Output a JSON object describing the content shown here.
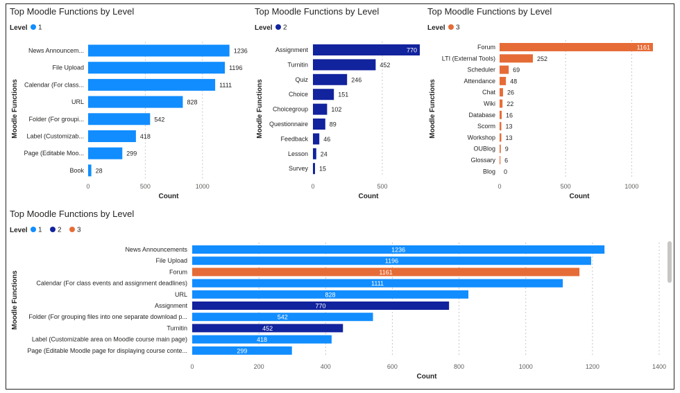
{
  "chart_data": [
    {
      "type": "bar",
      "orientation": "horizontal",
      "title": "Top Moodle Functions by Level",
      "legend_title": "Level",
      "legend": [
        {
          "label": "1",
          "color": "#118DFF"
        }
      ],
      "categories": [
        "News Announcem...",
        "File Upload",
        "Calendar (For class...",
        "URL",
        "Folder (For groupi...",
        "Label (Customizab...",
        "Page (Editable Moo...",
        "Book"
      ],
      "values": [
        1236,
        1196,
        1111,
        828,
        542,
        418,
        299,
        28
      ],
      "bar_colors": [
        "#118DFF",
        "#118DFF",
        "#118DFF",
        "#118DFF",
        "#118DFF",
        "#118DFF",
        "#118DFF",
        "#118DFF"
      ],
      "label_inside": [
        false,
        false,
        false,
        false,
        false,
        false,
        false,
        false
      ],
      "xlabel": "Count",
      "ylabel": "Moodle Functions",
      "xlim": [
        0,
        1250
      ],
      "xticks": [
        0,
        500,
        1000
      ]
    },
    {
      "type": "bar",
      "orientation": "horizontal",
      "title": "Top Moodle Functions by Level",
      "legend_title": "Level",
      "legend": [
        {
          "label": "2",
          "color": "#12239E"
        }
      ],
      "categories": [
        "Assignment",
        "Turnitin",
        "Quiz",
        "Choice",
        "Choicegroup",
        "Questionnaire",
        "Feedback",
        "Lesson",
        "Survey"
      ],
      "values": [
        770,
        452,
        246,
        151,
        102,
        89,
        46,
        24,
        15
      ],
      "bar_colors": [
        "#12239E",
        "#12239E",
        "#12239E",
        "#12239E",
        "#12239E",
        "#12239E",
        "#12239E",
        "#12239E",
        "#12239E"
      ],
      "label_inside": [
        true,
        false,
        false,
        false,
        false,
        false,
        false,
        false,
        false
      ],
      "xlabel": "Count",
      "ylabel": "Moodle Functions",
      "xlim": [
        0,
        770
      ],
      "xticks": [
        0,
        500
      ]
    },
    {
      "type": "bar",
      "orientation": "horizontal",
      "title": "Top Moodle Functions by Level",
      "legend_title": "Level",
      "legend": [
        {
          "label": "3",
          "color": "#E66C37"
        }
      ],
      "categories": [
        "Forum",
        "LTI (External Tools)",
        "Scheduler",
        "Attendance",
        "Chat",
        "Wiki",
        "Database",
        "Scorm",
        "Workshop",
        "OUBlog",
        "Glossary",
        "Blog"
      ],
      "values": [
        1161,
        252,
        69,
        48,
        26,
        22,
        16,
        13,
        13,
        9,
        6,
        0
      ],
      "bar_colors": [
        "#E66C37",
        "#E66C37",
        "#E66C37",
        "#E66C37",
        "#E66C37",
        "#E66C37",
        "#E66C37",
        "#E66C37",
        "#E66C37",
        "#E66C37",
        "#E66C37",
        "#E66C37"
      ],
      "label_inside": [
        true,
        false,
        false,
        false,
        false,
        false,
        false,
        false,
        false,
        false,
        false,
        false
      ],
      "xlabel": "Count",
      "ylabel": "Moodle Functions",
      "xlim": [
        0,
        1161
      ],
      "xticks": [
        0,
        500,
        1000
      ]
    },
    {
      "type": "bar",
      "orientation": "horizontal",
      "title": "Top Moodle Functions by Level",
      "legend_title": "Level",
      "legend": [
        {
          "label": "1",
          "color": "#118DFF"
        },
        {
          "label": "2",
          "color": "#12239E"
        },
        {
          "label": "3",
          "color": "#E66C37"
        }
      ],
      "categories": [
        "News Announcements",
        "File Upload",
        "Forum",
        "Calendar (For class events and assignment deadlines)",
        "URL",
        "Assignment",
        "Folder (For grouping files into one separate download p...",
        "Turnitin",
        "Label (Customizable area on Moodle course main page)",
        "Page (Editable Moodle page for displaying course conte..."
      ],
      "values": [
        1236,
        1196,
        1161,
        1111,
        828,
        770,
        542,
        452,
        418,
        299
      ],
      "bar_colors": [
        "#118DFF",
        "#118DFF",
        "#E66C37",
        "#118DFF",
        "#118DFF",
        "#12239E",
        "#118DFF",
        "#12239E",
        "#118DFF",
        "#118DFF"
      ],
      "label_inside": [
        true,
        true,
        true,
        true,
        true,
        true,
        true,
        true,
        true,
        true
      ],
      "xlabel": "Count",
      "ylabel": "Moodle Functions",
      "xlim": [
        0,
        1400
      ],
      "xticks": [
        0,
        200,
        400,
        600,
        800,
        1000,
        1200,
        1400
      ]
    }
  ]
}
